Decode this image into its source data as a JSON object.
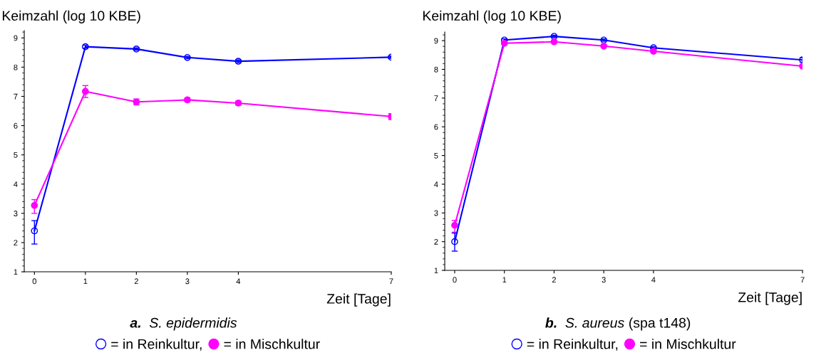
{
  "chart_data": [
    {
      "type": "line",
      "title": "a.",
      "subtitle": "S. epidermidis",
      "ylabel": "Keimzahl (log 10 KBE)",
      "xlabel": "Zeit [Tage]",
      "x": [
        0,
        1,
        2,
        3,
        4,
        7
      ],
      "xlim": [
        -0.2,
        7
      ],
      "xticks": [
        0,
        1,
        2,
        3,
        4,
        7
      ],
      "ylim": [
        1,
        9.25
      ],
      "yticks": [
        1,
        2,
        3,
        4,
        5,
        6,
        7,
        8,
        9
      ],
      "legend": "bottom",
      "grid": false,
      "line_style": "solid",
      "series": [
        {
          "name": "= in Reinkultur,",
          "color": "#0000ff",
          "marker": "circle",
          "values": [
            2.4,
            8.7,
            8.62,
            8.33,
            8.2,
            8.34
          ],
          "errors": [
            [
              1.95,
              2.75
            ],
            0.05,
            0.04,
            0.04,
            0.05,
            0.04
          ]
        },
        {
          "name": "= in Mischkultur",
          "color": "#ff00ff",
          "marker": "circle",
          "values": [
            3.27,
            7.17,
            6.81,
            6.88,
            6.77,
            6.31
          ],
          "errors": [
            [
              3.0,
              3.47
            ],
            [
              6.96,
              7.37
            ],
            0.1,
            0.07,
            0.07,
            0.1
          ]
        }
      ]
    },
    {
      "type": "line",
      "title": "b.",
      "subtitle": "S. aureus (spa t148)",
      "ylabel": "Keimzahl (log 10 KBE)",
      "xlabel": "Zeit [Tage]",
      "x": [
        0,
        1,
        2,
        3,
        4,
        7
      ],
      "xlim": [
        -0.2,
        7
      ],
      "xticks": [
        0,
        1,
        2,
        3,
        4,
        7
      ],
      "ylim": [
        1,
        9.3
      ],
      "yticks": [
        1,
        2,
        3,
        4,
        5,
        6,
        7,
        8,
        9
      ],
      "legend": "bottom",
      "grid": false,
      "line_style": "solid",
      "series": [
        {
          "name": "= in Reinkultur,",
          "color": "#0000ff",
          "marker": "circle",
          "values": [
            2.0,
            9.02,
            9.15,
            9.02,
            8.75,
            8.33
          ],
          "errors": [
            [
              1.67,
              2.3
            ],
            0.04,
            0.04,
            0.04,
            0.04,
            0.08
          ]
        },
        {
          "name": "= in Mischkultur",
          "color": "#ff00ff",
          "marker": "circle",
          "values": [
            2.57,
            8.91,
            8.96,
            8.81,
            8.63,
            8.11
          ],
          "errors": [
            [
              2.33,
              2.74
            ],
            0.04,
            0.04,
            0.04,
            0.04,
            0.04
          ]
        }
      ]
    }
  ]
}
